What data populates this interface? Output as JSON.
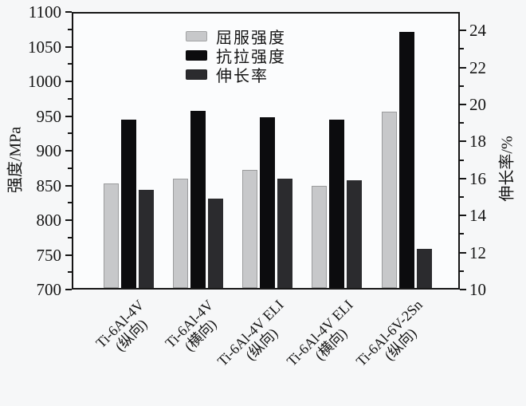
{
  "chart_data": {
    "type": "bar",
    "title": "",
    "categories": [
      {
        "alloy": "Ti-6Al-4V",
        "orientation": "(纵向)"
      },
      {
        "alloy": "Ti-6Al-4V",
        "orientation": "(横向)"
      },
      {
        "alloy": "Ti-6Al-4V ELI",
        "orientation": "(纵向)"
      },
      {
        "alloy": "Ti-6Al-4V ELI",
        "orientation": "(横向)"
      },
      {
        "alloy": "Ti-6Al-6V-2Sn",
        "orientation": "(纵向)"
      }
    ],
    "series": [
      {
        "name": "屈服强度",
        "axis": "left",
        "color": "#c7c8ca",
        "values": [
          853,
          860,
          872,
          849,
          956
        ]
      },
      {
        "name": "抗拉强度",
        "axis": "left",
        "color": "#0c0c0e",
        "values": [
          945,
          958,
          948,
          945,
          1071
        ]
      },
      {
        "name": "伸长率",
        "axis": "right",
        "color": "#2b2b2e",
        "values": [
          15.4,
          14.9,
          16.0,
          15.9,
          12.2
        ]
      }
    ],
    "left_axis": {
      "label": "强度/MPa",
      "min": 700,
      "max": 1100,
      "tick_step": 50,
      "minor_step": 25,
      "ticks": [
        700,
        750,
        800,
        850,
        900,
        950,
        1000,
        1050,
        1100
      ]
    },
    "right_axis": {
      "label": "伸长率/%",
      "min": 10,
      "max": 25,
      "tick_step": 2,
      "minor_step": 1,
      "ticks": [
        10,
        12,
        14,
        16,
        18,
        20,
        22,
        24
      ]
    },
    "legend_position": "top-center-inside",
    "grid": false,
    "frame_color": "#161616"
  }
}
